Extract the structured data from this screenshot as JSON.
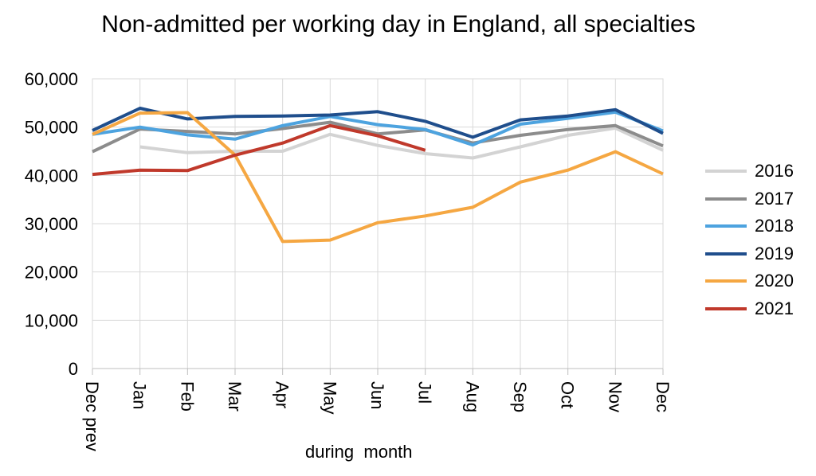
{
  "chart_data": {
    "type": "line",
    "title": "Non-admitted per working day in England, all specialties",
    "xlabel": "during  month",
    "ylabel": "",
    "ylim": [
      0,
      60000
    ],
    "yticks": [
      "0",
      "10,000",
      "20,000",
      "30,000",
      "40,000",
      "50,000",
      "60,000"
    ],
    "categories": [
      "Dec prev",
      "Jan",
      "Feb",
      "Mar",
      "Apr",
      "May",
      "Jun",
      "Jul",
      "Aug",
      "Sep",
      "Oct",
      "Nov",
      "Dec"
    ],
    "grid": true,
    "legend_position": "right",
    "series": [
      {
        "name": "2016",
        "color": "#d3d3d3",
        "values": [
          null,
          45900,
          44700,
          45000,
          45000,
          48500,
          46200,
          44500,
          43600,
          45900,
          48300,
          49800,
          45200
        ]
      },
      {
        "name": "2017",
        "color": "#8c8c8c",
        "values": [
          44900,
          49600,
          49100,
          48600,
          49700,
          51000,
          48600,
          49400,
          46700,
          48300,
          49500,
          50300,
          46100
        ]
      },
      {
        "name": "2018",
        "color": "#4da3df",
        "values": [
          48500,
          50000,
          48400,
          47500,
          50300,
          52200,
          50500,
          49500,
          46300,
          50600,
          51800,
          53100,
          49200
        ]
      },
      {
        "name": "2019",
        "color": "#1f4e8c",
        "values": [
          49300,
          53900,
          51700,
          52200,
          52300,
          52500,
          53200,
          51200,
          47900,
          51500,
          52300,
          53600,
          48700
        ]
      },
      {
        "name": "2020",
        "color": "#f5a742",
        "values": [
          48500,
          52900,
          53000,
          44200,
          26300,
          26600,
          30200,
          31600,
          33400,
          38600,
          41100,
          44900,
          40300
        ]
      },
      {
        "name": "2021",
        "color": "#c0392b",
        "values": [
          40200,
          41100,
          41000,
          44200,
          46700,
          50300,
          48200,
          45200,
          null,
          null,
          null,
          null,
          null
        ]
      }
    ]
  }
}
